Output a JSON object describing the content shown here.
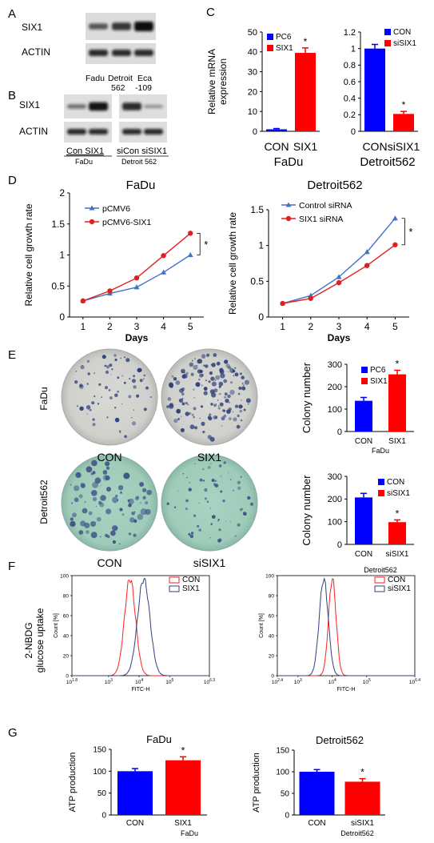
{
  "panels": {
    "A": {
      "letter": "A",
      "rows": [
        "SIX1",
        "ACTIN"
      ],
      "lanes": [
        "Fadu",
        "Detroit\n562",
        "Eca\n-109"
      ],
      "intensity": {
        "SIX1": [
          0.45,
          0.7,
          1.0
        ],
        "ACTIN": [
          0.8,
          0.8,
          0.8
        ]
      }
    },
    "B": {
      "letter": "B",
      "rows": [
        "SIX1",
        "ACTIN"
      ],
      "groups": [
        {
          "lanes": "Con SIX1",
          "cell": "FaDu"
        },
        {
          "lanes": "siCon siSIX1",
          "cell": "Detroit 562"
        }
      ],
      "intensity": {
        "SIX1": [
          0.35,
          0.95,
          0.8,
          0.15
        ],
        "ACTIN": [
          0.8,
          0.8,
          0.8,
          0.8
        ]
      }
    },
    "C_letter": "C",
    "D_letter": "D",
    "E_letter": "E",
    "F_letter": "F",
    "G_letter": "G",
    "E": {
      "row_labels": [
        "FaDu",
        "Detroit562"
      ],
      "dish_labels": [
        [
          "CON",
          "SIX1"
        ],
        [
          "CON",
          "siSIX1"
        ]
      ]
    },
    "F": {
      "ylabel": "2-NBDG\nglucose uptake"
    }
  },
  "chart_data": [
    {
      "id": "C-left",
      "type": "bar",
      "categories": [
        "CON",
        "SIX1"
      ],
      "values": [
        1,
        39.5
      ],
      "errors": [
        0.4,
        2.5
      ],
      "colors": [
        "#0000ff",
        "#ff0000"
      ],
      "ylabel": "Relative mRNA\nexpression",
      "xlabel": "FaDu",
      "ylim": [
        0,
        50
      ],
      "yticks": [
        0,
        10,
        20,
        30,
        40,
        50
      ],
      "legend": [
        "PC6",
        "SIX1"
      ],
      "legend_position": "top-left",
      "significance": [
        "",
        "*"
      ]
    },
    {
      "id": "C-right",
      "type": "bar",
      "categories": [
        "CON",
        "siSIX1"
      ],
      "values": [
        1,
        0.21
      ],
      "errors": [
        0.05,
        0.03
      ],
      "colors": [
        "#0000ff",
        "#ff0000"
      ],
      "xlabel": "Detroit562",
      "ylim": [
        0,
        1.2
      ],
      "yticks": [
        0,
        0.2,
        0.4,
        0.6,
        0.8,
        1,
        1.2
      ],
      "legend": [
        "CON",
        "siSIX1"
      ],
      "legend_position": "top-right",
      "significance": [
        "",
        "*"
      ]
    },
    {
      "id": "D-left",
      "type": "line",
      "title": "FaDu",
      "x": [
        1,
        2,
        3,
        4,
        5
      ],
      "xlabel": "Days",
      "ylabel": "Relative cell growth rate",
      "ylim": [
        0,
        2
      ],
      "yticks": [
        0,
        0.5,
        1,
        1.5,
        2
      ],
      "series": [
        {
          "name": "pCMV6",
          "values": [
            0.26,
            0.38,
            0.48,
            0.72,
            1.0
          ],
          "color": "#4472c4",
          "marker": "triangle"
        },
        {
          "name": "pCMV6-SIX1",
          "values": [
            0.26,
            0.42,
            0.63,
            0.99,
            1.35
          ],
          "color": "#e02020",
          "marker": "circle"
        }
      ],
      "significance": "*",
      "legend_position": "top-left"
    },
    {
      "id": "D-right",
      "type": "line",
      "title": "Detroit562",
      "x": [
        1,
        2,
        3,
        4,
        5
      ],
      "xlabel": "Days",
      "ylabel": "Relative cell growth rate",
      "ylim": [
        0,
        1.5
      ],
      "yticks": [
        0,
        0.5,
        1,
        1.5
      ],
      "series": [
        {
          "name": "Control siRNA",
          "values": [
            0.19,
            0.3,
            0.56,
            0.91,
            1.38
          ],
          "color": "#4472c4",
          "marker": "triangle"
        },
        {
          "name": "SIX1 siRNA",
          "values": [
            0.19,
            0.26,
            0.48,
            0.72,
            1.01
          ],
          "color": "#e02020",
          "marker": "circle"
        }
      ],
      "significance": "*",
      "legend_position": "top-left"
    },
    {
      "id": "E-top",
      "type": "bar",
      "categories": [
        "CON",
        "SIX1"
      ],
      "values": [
        137,
        255
      ],
      "errors": [
        15,
        18
      ],
      "colors": [
        "#0000ff",
        "#ff0000"
      ],
      "ylabel": "Colony number",
      "xlabel": "FaDu",
      "ylim": [
        0,
        300
      ],
      "yticks": [
        0,
        100,
        200,
        300
      ],
      "legend": [
        "PC6",
        "SIX1"
      ],
      "legend_position": "top-right",
      "significance": [
        "",
        "*"
      ]
    },
    {
      "id": "E-bottom",
      "type": "bar",
      "categories": [
        "CON",
        "siSIX1"
      ],
      "values": [
        207,
        98
      ],
      "errors": [
        18,
        10
      ],
      "colors": [
        "#0000ff",
        "#ff0000"
      ],
      "ylabel": "Colony number",
      "xlabel": "Detroit562",
      "ylim": [
        0,
        300
      ],
      "yticks": [
        0,
        100,
        200,
        300
      ],
      "legend": [
        "CON",
        "siSIX1"
      ],
      "legend_position": "top-right",
      "significance": [
        "",
        "*"
      ]
    },
    {
      "id": "F-left",
      "type": "line",
      "xlabel": "FITC-H",
      "ylabel": "Count [%]",
      "xtick_labels": [
        "10^1.8",
        "10^3",
        "10^4",
        "10^5",
        "10^6.3"
      ],
      "xtick_log": [
        1.8,
        3,
        4,
        5,
        6.3
      ],
      "ytick_labels": [
        "0",
        "20",
        "40",
        "60",
        "80",
        "100"
      ],
      "series": [
        {
          "name": "CON",
          "color": "#ff2020",
          "peak_log": 3.7,
          "width": 0.18
        },
        {
          "name": "SIX1",
          "color": "#304080",
          "peak_log": 4.15,
          "width": 0.2
        }
      ],
      "legend_position": "top-right"
    },
    {
      "id": "F-right",
      "type": "line",
      "xlabel": "FITC-H",
      "ylabel": "Count [%]",
      "xtick_labels": [
        "10^2.4",
        "10^3",
        "10^4",
        "10^5",
        "10^6.4"
      ],
      "xtick_log": [
        2.4,
        3,
        4,
        5,
        6.4
      ],
      "ytick_labels": [
        "0",
        "20",
        "40",
        "60",
        "80",
        "100"
      ],
      "series": [
        {
          "name": "CON",
          "color": "#ff2020",
          "peak_log": 4.0,
          "width": 0.11
        },
        {
          "name": "siSIX1",
          "color": "#304080",
          "peak_log": 3.75,
          "width": 0.13
        }
      ],
      "legend_position": "top-right"
    },
    {
      "id": "G-left",
      "type": "bar",
      "title": "FaDu",
      "categories": [
        "CON",
        "SIX1"
      ],
      "values": [
        100,
        125
      ],
      "errors": [
        6,
        8
      ],
      "colors": [
        "#0000ff",
        "#ff0000"
      ],
      "ylabel": "ATP production",
      "xlabel": "FaDu",
      "ylim": [
        0,
        150
      ],
      "yticks": [
        0,
        50,
        100,
        150
      ],
      "significance": [
        "",
        "*"
      ]
    },
    {
      "id": "G-right",
      "type": "bar",
      "title": "Detroit562",
      "categories": [
        "CON",
        "siSIX1"
      ],
      "values": [
        100,
        77
      ],
      "errors": [
        5,
        7
      ],
      "colors": [
        "#0000ff",
        "#ff0000"
      ],
      "ylabel": "ATP production",
      "xlabel": "Detroit562",
      "ylim": [
        0,
        150
      ],
      "yticks": [
        0,
        50,
        100,
        150
      ],
      "significance": [
        "",
        "*"
      ]
    }
  ]
}
